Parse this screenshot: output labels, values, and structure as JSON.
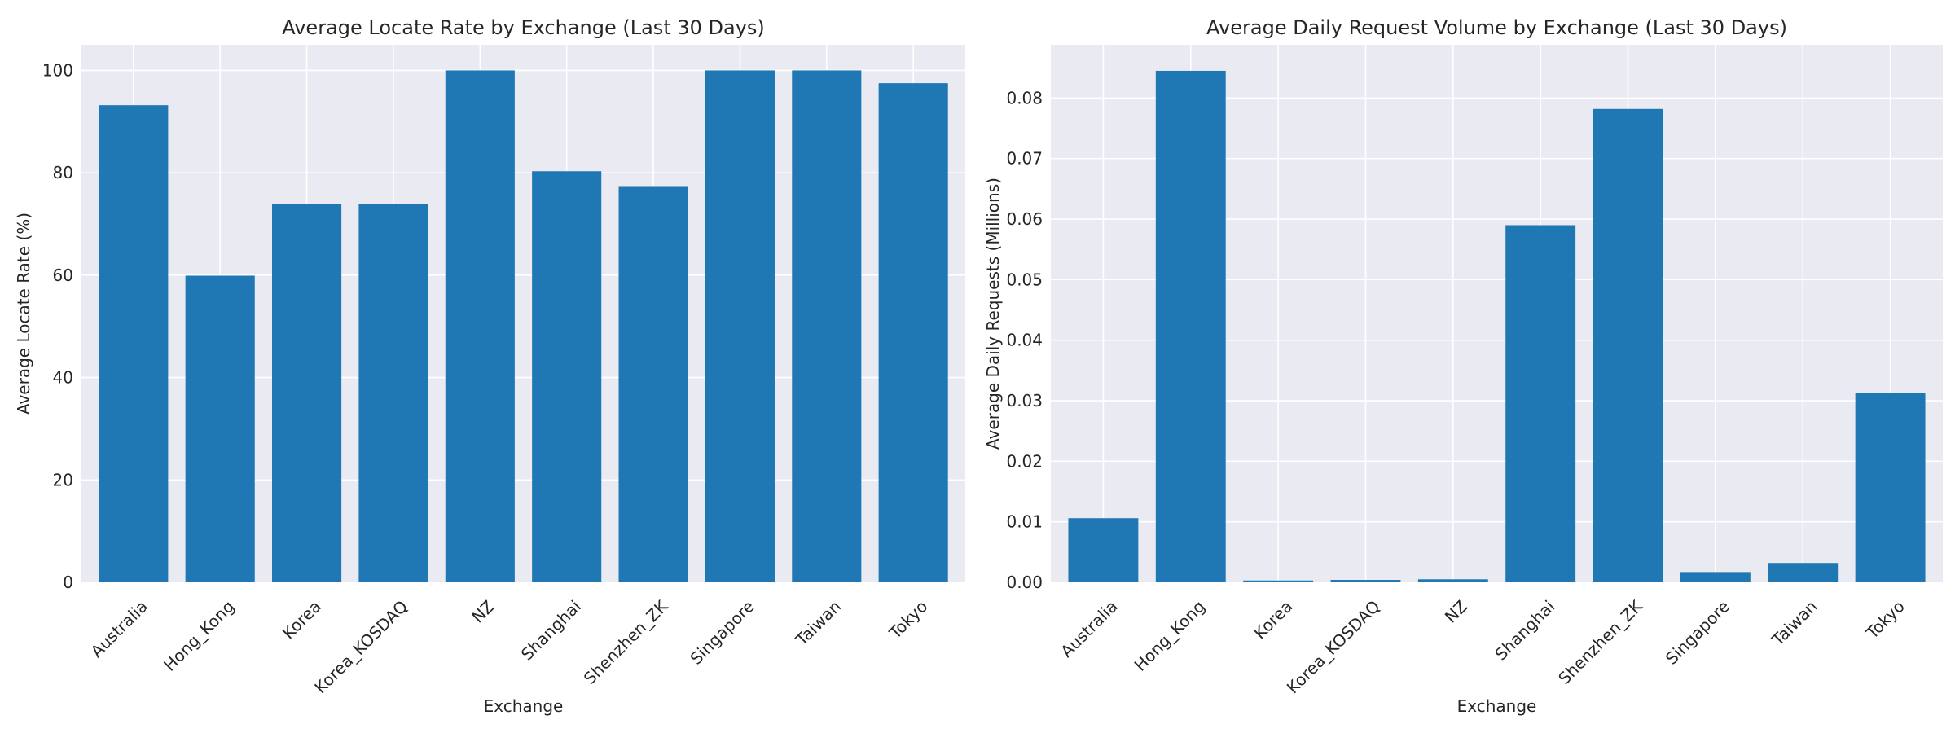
{
  "chart_data": [
    {
      "type": "bar",
      "title": "Average Locate Rate by Exchange (Last 30 Days)",
      "xlabel": "Exchange",
      "ylabel": "Average Locate Rate (%)",
      "categories": [
        "Australia",
        "Hong_Kong",
        "Korea",
        "Korea_KOSDAQ",
        "NZ",
        "Shanghai",
        "Shenzhen_ZK",
        "Singapore",
        "Taiwan",
        "Tokyo"
      ],
      "values": [
        93.2,
        59.9,
        73.9,
        73.9,
        100.0,
        80.3,
        77.4,
        100.0,
        100.0,
        97.5
      ],
      "ylim": [
        0,
        105
      ],
      "yticks": [
        0,
        20,
        40,
        60,
        80,
        100
      ],
      "ytick_labels": [
        "0",
        "20",
        "40",
        "60",
        "80",
        "100"
      ],
      "grid": true,
      "bar_color": "#1f77b4"
    },
    {
      "type": "bar",
      "title": "Average Daily Request Volume by Exchange (Last 30 Days)",
      "xlabel": "Exchange",
      "ylabel": "Average Daily Requests (Millions)",
      "categories": [
        "Australia",
        "Hong_Kong",
        "Korea",
        "Korea_KOSDAQ",
        "NZ",
        "Shanghai",
        "Shenzhen_ZK",
        "Singapore",
        "Taiwan",
        "Tokyo"
      ],
      "values": [
        0.0106,
        0.0845,
        0.0003,
        0.0004,
        0.0005,
        0.059,
        0.0782,
        0.0017,
        0.0032,
        0.0313
      ],
      "ylim": [
        0,
        0.0888
      ],
      "yticks": [
        0,
        0.01,
        0.02,
        0.03,
        0.04,
        0.05,
        0.06,
        0.07,
        0.08
      ],
      "ytick_labels": [
        "0.00",
        "0.01",
        "0.02",
        "0.03",
        "0.04",
        "0.05",
        "0.06",
        "0.07",
        "0.08"
      ],
      "grid": true,
      "bar_color": "#1f77b4"
    }
  ],
  "colors": {
    "plot_background": "#eaeaf2",
    "grid": "#ffffff",
    "bar": "#1f77b4",
    "text": "#262626"
  }
}
